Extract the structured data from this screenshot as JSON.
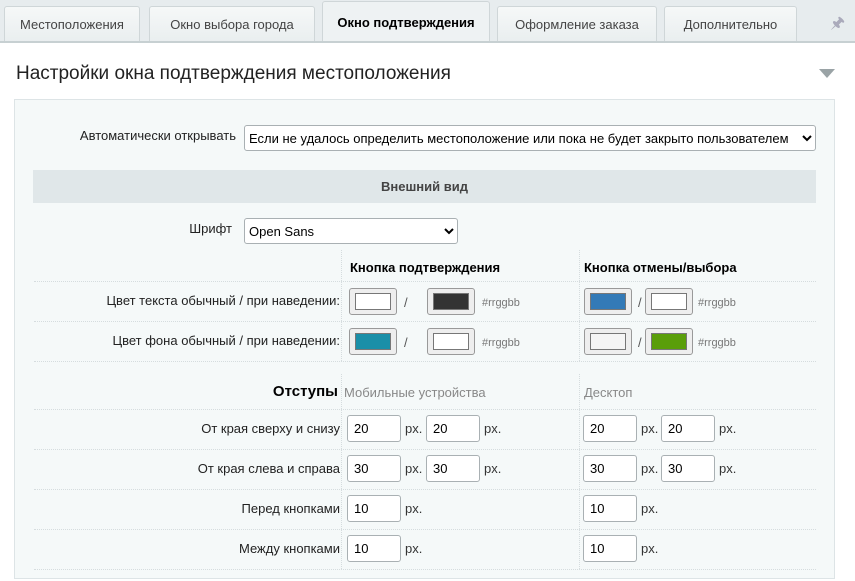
{
  "tabs": [
    {
      "label": "Местоположения",
      "active": false
    },
    {
      "label": "Окно выбора города",
      "active": false
    },
    {
      "label": "Окно подтверждения",
      "active": true
    },
    {
      "label": "Оформление заказа",
      "active": false
    },
    {
      "label": "Дополнительно",
      "active": false
    }
  ],
  "panel": {
    "title": "Настройки окна подтверждения местоположения"
  },
  "auto_open": {
    "label": "Автоматически открывать",
    "value": "Если не удалось определить местоположение или пока не будет закрыто пользователем"
  },
  "appearance": {
    "header": "Внешний вид",
    "font_label": "Шрифт",
    "font_value": "Open Sans",
    "col_confirm": "Кнопка подтверждения",
    "col_cancel": "Кнопка отмены/выбора",
    "text_color_label": "Цвет текста обычный / при наведении:",
    "bg_color_label": "Цвет фона обычный / при наведении:",
    "slash": "/",
    "hint": "#rrggbb",
    "colors": {
      "confirm_text": "#ffffff",
      "confirm_text_hover": "#333333",
      "cancel_text": "#337ab7",
      "cancel_text_hover": "#ffffff",
      "confirm_bg": "#1a8fa8",
      "confirm_bg_hover": "#ffffff",
      "cancel_bg": "#f5f5f5",
      "cancel_bg_hover": "#5a9e0a"
    }
  },
  "padding": {
    "header": "Отступы",
    "mobile": "Мобильные устройства",
    "desktop": "Десктоп",
    "unit": "px.",
    "rows": [
      {
        "label": "От края сверху и снизу",
        "m1": "20",
        "m2": "20",
        "d1": "20",
        "d2": "20"
      },
      {
        "label": "От края слева и справа",
        "m1": "30",
        "m2": "30",
        "d1": "30",
        "d2": "30"
      },
      {
        "label": "Перед кнопками",
        "m1": "10",
        "d1": "10"
      },
      {
        "label": "Между кнопками",
        "m1": "10",
        "d1": "10"
      }
    ]
  }
}
